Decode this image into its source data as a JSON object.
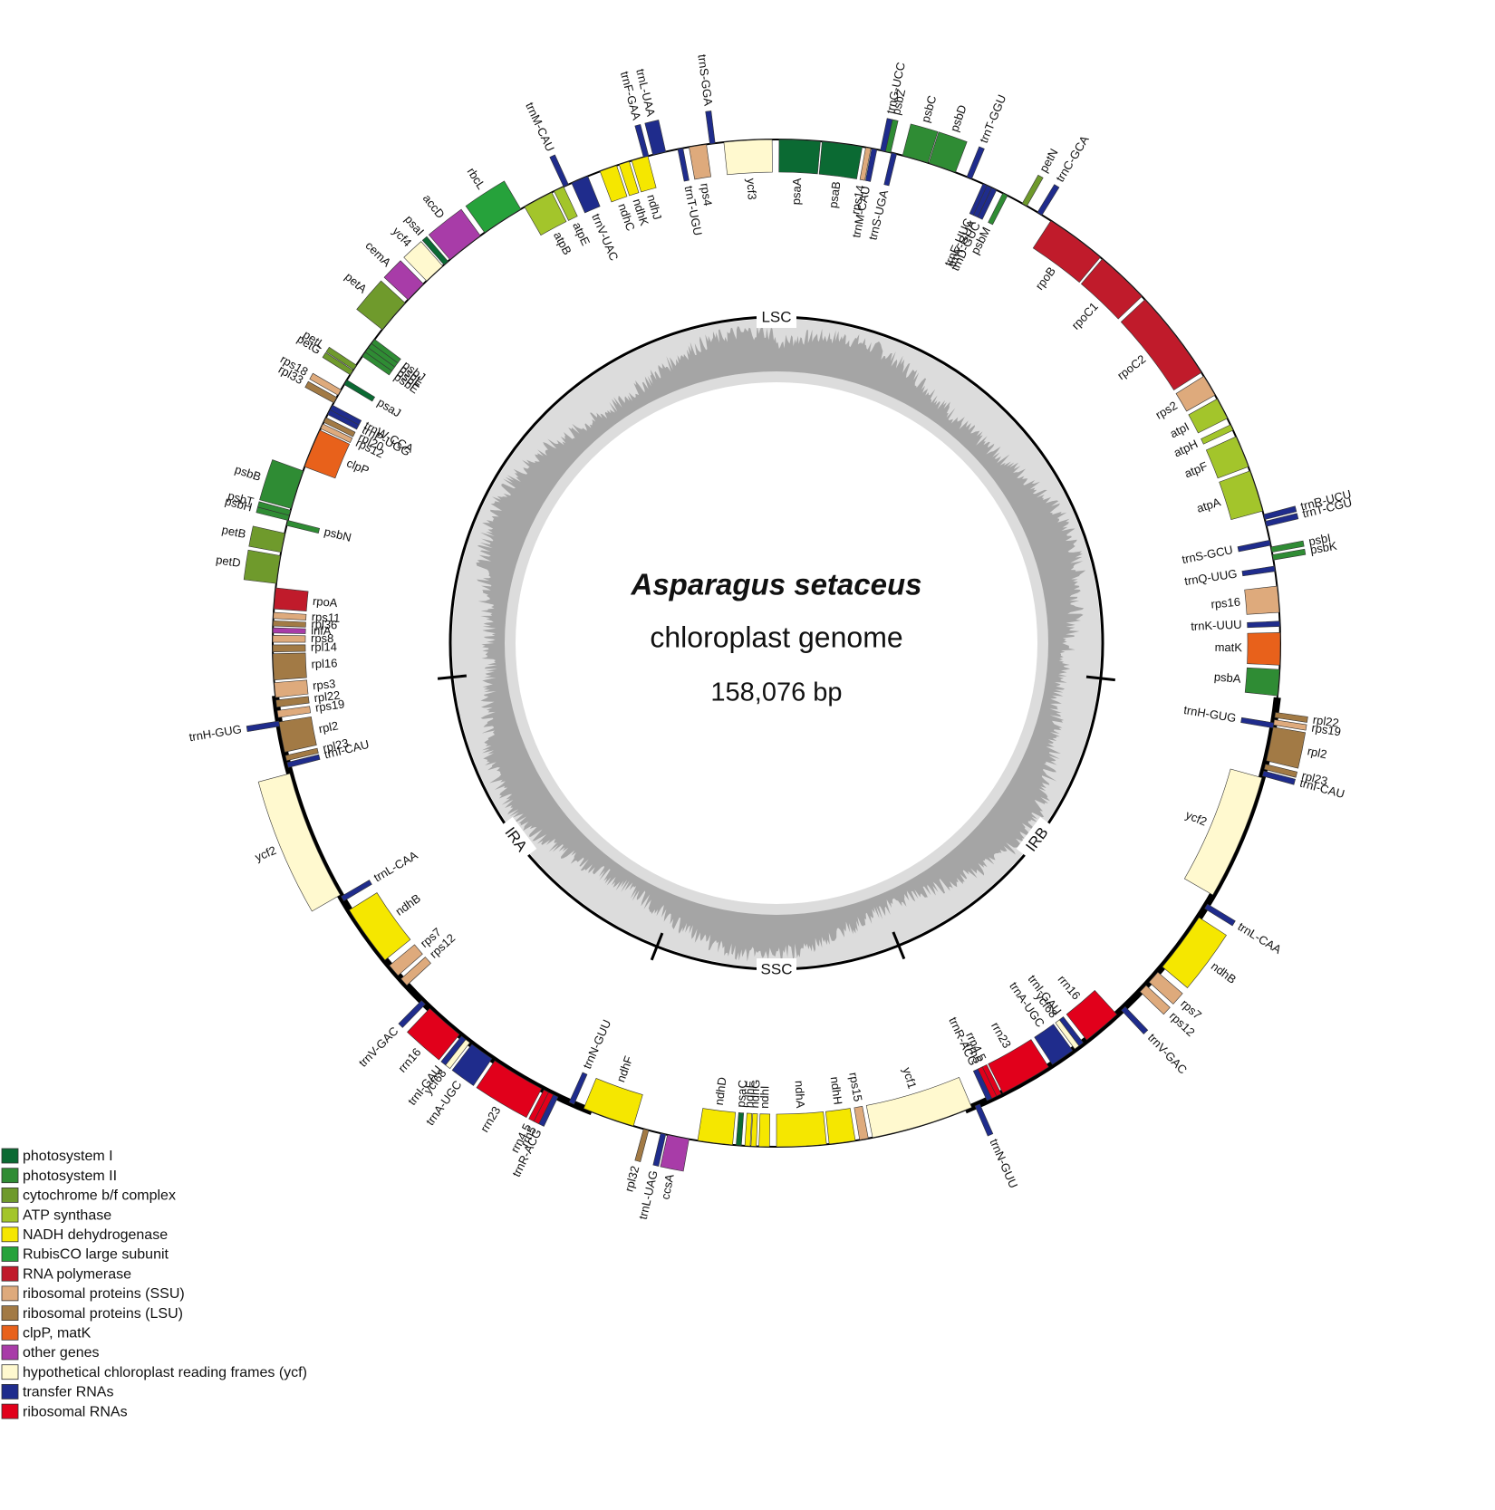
{
  "title": "Asparagus setaceus",
  "subtitle": "chloroplast genome",
  "length": "158,076 bp",
  "regions": [
    "LSC",
    "IRB",
    "SSC",
    "IRA"
  ],
  "genes": [
    "psaA",
    "psaB",
    "rps14",
    "trnM-CAU",
    "trnG-UCC",
    "psbZ",
    "trnS-UGA",
    "psbC",
    "psbD",
    "trnT-GGU",
    "trnE-UUC",
    "trnY-GUA",
    "trnD-GUC",
    "psbM",
    "petN",
    "trnC-GCA",
    "rpoB",
    "rpoC1",
    "rpoC2",
    "rps2",
    "atpI",
    "atpH",
    "atpF",
    "atpA",
    "trnR-UCU",
    "trnT-CGU",
    "trnS-GCU",
    "psbI",
    "psbK",
    "trnQ-UUG",
    "rps16",
    "trnK-UUU",
    "matK",
    "psbA",
    "rpl22",
    "rps19",
    "trnH-GUG",
    "rpl2",
    "rpl23",
    "trnI-CAU",
    "ycf2",
    "trnL-CAA",
    "ndhB",
    "rps7",
    "rps12",
    "trnV-GAC",
    "rrn16",
    "trnI-GAU",
    "ycf68",
    "trnA-UGC",
    "rrn23",
    "rrn4.5",
    "rrn5",
    "trnR-ACG",
    "trnN-GUU",
    "ycf1",
    "rps15",
    "ndhH",
    "ndhA",
    "ndhI",
    "ndhG",
    "ndhE",
    "psaC",
    "ndhD",
    "ccsA",
    "trnL-UAG",
    "rpl32",
    "ndhF",
    "trnN-GUU",
    "trnR-ACG",
    "rrn5",
    "rrn4.5",
    "rrn23",
    "trnA-UGC",
    "ycf68",
    "trnI-GAU",
    "rrn16",
    "trnV-GAC",
    "rps12",
    "rps7",
    "ndhB",
    "trnL-CAA",
    "ycf2",
    "trnI-CAU",
    "rpl23",
    "rpl2",
    "trnH-GUG",
    "rps19",
    "rpl22",
    "rps3",
    "rpl16",
    "rpl14",
    "rps8",
    "infA",
    "rpl36",
    "rps11",
    "rpoA",
    "petD",
    "petB",
    "psbN",
    "psbH",
    "psbT",
    "psbB",
    "clpP",
    "rps12",
    "rpl20",
    "trnP-UGG",
    "trnW-CCA",
    "rpl33",
    "rps18",
    "psaJ",
    "petG",
    "petL",
    "psbE",
    "psbF",
    "psbL",
    "psbJ",
    "petA",
    "cemA",
    "ycf4",
    "psaI",
    "accD",
    "rbcL",
    "atpB",
    "atpE",
    "trnM-CAU",
    "trnV-UAC",
    "ndhC",
    "ndhK",
    "ndhJ",
    "trnF-GAA",
    "trnL-UAA",
    "trnT-UGU",
    "rps4",
    "trnS-GGA",
    "ycf3"
  ],
  "legend": [
    {
      "label": "photosystem I",
      "color": "#0b6a33"
    },
    {
      "label": "photosystem II",
      "color": "#2f8c34"
    },
    {
      "label": "cytochrome b/f complex",
      "color": "#6f9a2c"
    },
    {
      "label": "ATP synthase",
      "color": "#a3c52b"
    },
    {
      "label": "NADH dehydrogenase",
      "color": "#f5e700"
    },
    {
      "label": "RubisCO large subunit",
      "color": "#26a23b"
    },
    {
      "label": "RNA polymerase",
      "color": "#c01b2b"
    },
    {
      "label": "ribosomal proteins (SSU)",
      "color": "#deaa7c"
    },
    {
      "label": "ribosomal proteins (LSU)",
      "color": "#a27a45"
    },
    {
      "label": "clpP, matK",
      "color": "#e8611b"
    },
    {
      "label": "other genes",
      "color": "#a83ca8"
    },
    {
      "label": "hypothetical chloroplast reading frames (ycf)",
      "color": "#fff9cf"
    },
    {
      "label": "transfer RNAs",
      "color": "#1f2c8c"
    },
    {
      "label": "ribosomal RNAs",
      "color": "#e1001b"
    }
  ]
}
